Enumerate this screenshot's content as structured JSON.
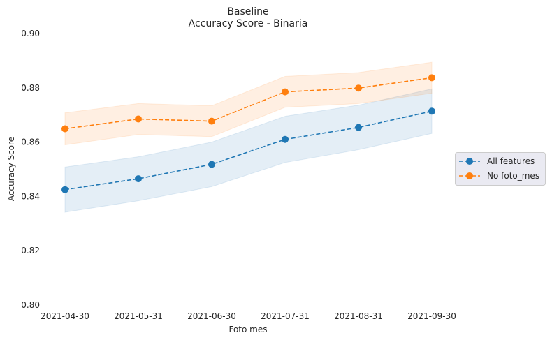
{
  "chart_data": {
    "type": "line",
    "title": "Baseline",
    "subtitle": "Accuracy Score - Binaria",
    "xlabel": "Foto mes",
    "ylabel": "Accuracy Score",
    "categories": [
      "2021-04-30",
      "2021-05-31",
      "2021-06-30",
      "2021-07-31",
      "2021-08-31",
      "2021-09-30"
    ],
    "ylim": [
      0.8,
      0.9
    ],
    "yticks": [
      "0.80",
      "0.82",
      "0.84",
      "0.86",
      "0.88",
      "0.90"
    ],
    "grid": false,
    "legend_position": "right",
    "series": [
      {
        "name": "All features",
        "color": "#1f77b4",
        "values": [
          0.8425,
          0.8465,
          0.8518,
          0.861,
          0.8654,
          0.8714
        ],
        "lower": [
          0.8342,
          0.8384,
          0.8436,
          0.8525,
          0.8572,
          0.8632
        ],
        "upper": [
          0.8508,
          0.8546,
          0.86,
          0.8695,
          0.8736,
          0.8796
        ]
      },
      {
        "name": "No foto_mes",
        "color": "#ff7f0e",
        "values": [
          0.8649,
          0.8685,
          0.8677,
          0.8785,
          0.8799,
          0.8837
        ],
        "lower": [
          0.859,
          0.8628,
          0.862,
          0.8728,
          0.8742,
          0.878
        ],
        "upper": [
          0.8708,
          0.8742,
          0.8734,
          0.8842,
          0.8856,
          0.8894
        ]
      }
    ]
  }
}
